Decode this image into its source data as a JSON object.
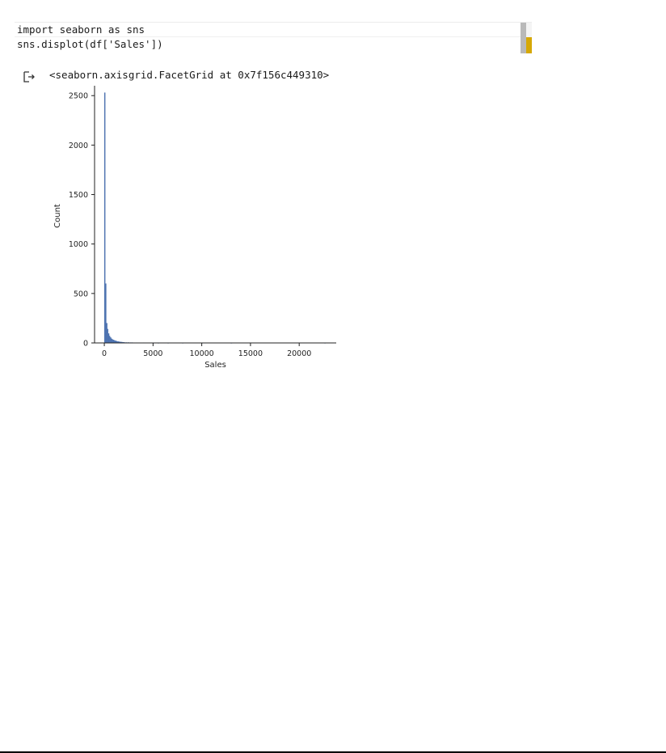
{
  "code_cell": {
    "lines": [
      "import seaborn as sns",
      "sns.displot(df['Sales'])"
    ]
  },
  "output": {
    "icon": "output-arrow-icon",
    "text": "<seaborn.axisgrid.FacetGrid at 0x7f156c449310>"
  },
  "colors": {
    "bar": "#4c72b0",
    "scroll_thumb": "#d6a805",
    "scroll_track": "#b9b9b9"
  },
  "chart_data": {
    "type": "bar",
    "xlabel": "Sales",
    "ylabel": "Count",
    "xlim": [
      -1000,
      23800
    ],
    "ylim": [
      0,
      2600
    ],
    "xticks": [
      0,
      5000,
      10000,
      15000,
      20000
    ],
    "yticks": [
      0,
      500,
      1000,
      1500,
      2000,
      2500
    ],
    "grid": false,
    "bin_width": 100,
    "bins": [
      {
        "x": 0,
        "count": 2530
      },
      {
        "x": 100,
        "count": 600
      },
      {
        "x": 200,
        "count": 200
      },
      {
        "x": 300,
        "count": 140
      },
      {
        "x": 400,
        "count": 95
      },
      {
        "x": 500,
        "count": 70
      },
      {
        "x": 600,
        "count": 55
      },
      {
        "x": 700,
        "count": 42
      },
      {
        "x": 800,
        "count": 35
      },
      {
        "x": 900,
        "count": 30
      },
      {
        "x": 1000,
        "count": 25
      },
      {
        "x": 1100,
        "count": 22
      },
      {
        "x": 1200,
        "count": 18
      },
      {
        "x": 1300,
        "count": 15
      },
      {
        "x": 1400,
        "count": 14
      },
      {
        "x": 1500,
        "count": 12
      },
      {
        "x": 1600,
        "count": 10
      },
      {
        "x": 1700,
        "count": 9
      },
      {
        "x": 1800,
        "count": 8
      },
      {
        "x": 1900,
        "count": 7
      },
      {
        "x": 2000,
        "count": 6
      },
      {
        "x": 2200,
        "count": 5
      },
      {
        "x": 2400,
        "count": 5
      },
      {
        "x": 2600,
        "count": 4
      },
      {
        "x": 2800,
        "count": 4
      },
      {
        "x": 3000,
        "count": 3
      },
      {
        "x": 3300,
        "count": 3
      },
      {
        "x": 3600,
        "count": 2
      },
      {
        "x": 4000,
        "count": 3
      },
      {
        "x": 4500,
        "count": 2
      },
      {
        "x": 5000,
        "count": 1
      },
      {
        "x": 5500,
        "count": 1
      },
      {
        "x": 6500,
        "count": 1
      },
      {
        "x": 8000,
        "count": 1
      },
      {
        "x": 10000,
        "count": 1
      },
      {
        "x": 13000,
        "count": 1
      },
      {
        "x": 22600,
        "count": 1
      }
    ]
  }
}
